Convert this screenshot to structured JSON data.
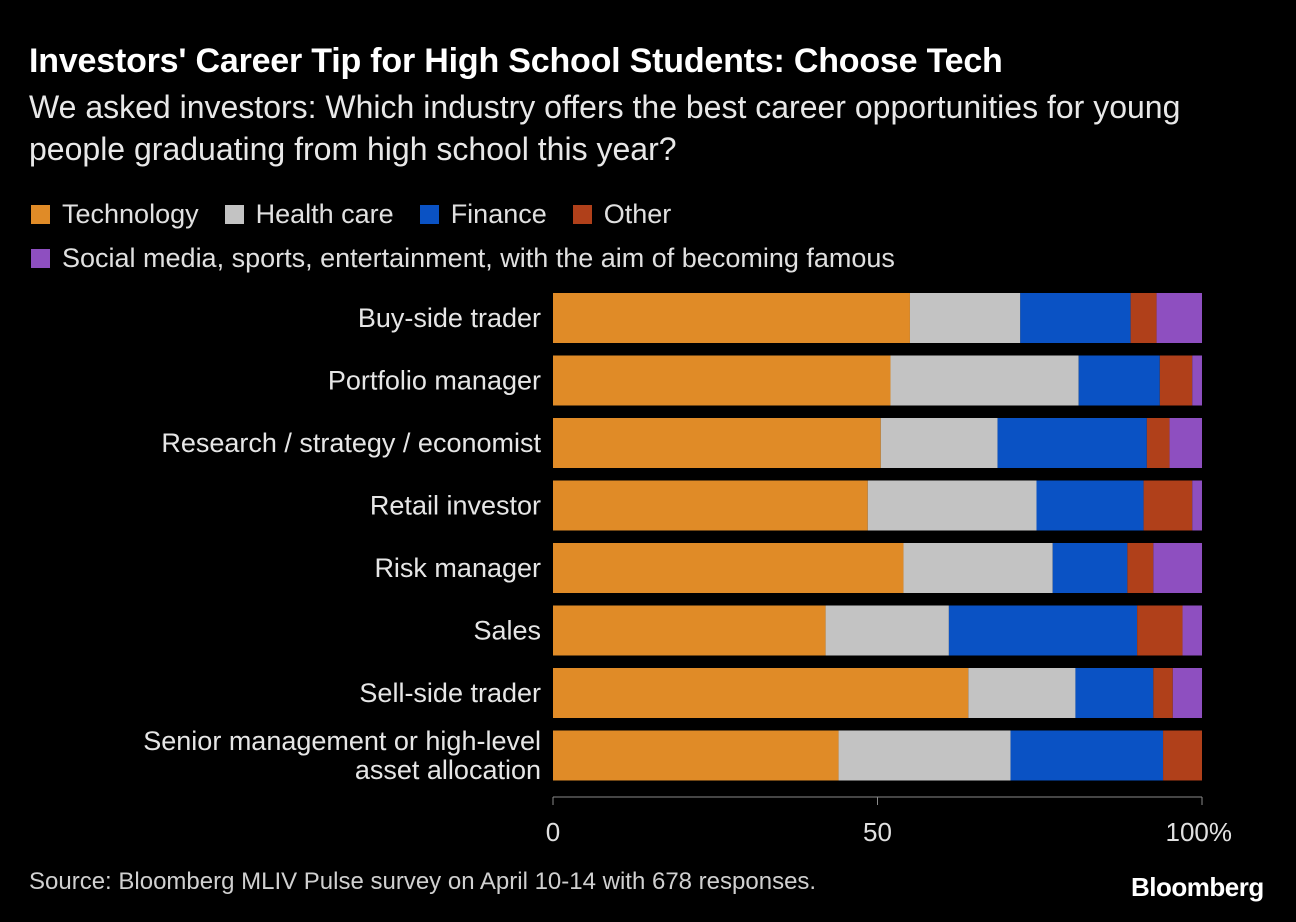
{
  "header": {
    "title": "Investors' Career Tip for High School Students: Choose Tech",
    "subtitle": "We asked investors: Which industry offers the best career opportunities for young people graduating from high school this year?"
  },
  "footer": {
    "source": "Source: Bloomberg MLIV Pulse survey on April 10-14 with 678 responses.",
    "brand": "Bloomberg"
  },
  "chart_data": {
    "type": "bar",
    "orientation": "horizontal",
    "stacked": true,
    "categories": [
      "Buy-side trader",
      "Portfolio manager",
      "Research / strategy / economist",
      "Retail investor",
      "Risk manager",
      "Sales",
      "Sell-side trader",
      "Senior management or high-level asset allocation"
    ],
    "series": [
      {
        "name": "Technology",
        "color": "#e08b27",
        "values": [
          55,
          52,
          50.5,
          48.5,
          54,
          42,
          64,
          44
        ]
      },
      {
        "name": "Health care",
        "color": "#c3c3c3",
        "values": [
          17,
          29,
          18,
          26,
          23,
          19,
          16.5,
          26.5
        ]
      },
      {
        "name": "Finance",
        "color": "#0a52c4",
        "values": [
          17,
          12.5,
          23,
          16.5,
          11.5,
          29,
          12,
          23.5
        ]
      },
      {
        "name": "Other",
        "color": "#b0401a",
        "values": [
          4,
          5,
          3.5,
          7.5,
          4,
          7,
          3,
          6
        ]
      },
      {
        "name": "Social media, sports, entertainment, with the aim of becoming famous",
        "color": "#8e4fc0",
        "values": [
          7,
          1.5,
          5,
          1.5,
          7.5,
          3,
          4.5,
          0
        ]
      }
    ],
    "xlim": [
      0,
      100
    ],
    "xticks": [
      "0",
      "50",
      "100%"
    ],
    "grid": false,
    "legend": "top"
  }
}
